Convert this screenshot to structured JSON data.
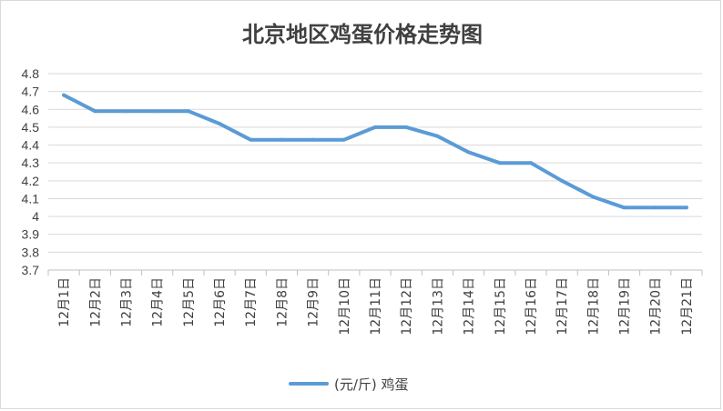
{
  "chart_data": {
    "type": "line",
    "title": "北京地区鸡蛋价格走势图",
    "categories": [
      "12月1日",
      "12月2日",
      "12月3日",
      "12月4日",
      "12月5日",
      "12月6日",
      "12月7日",
      "12月8日",
      "12月9日",
      "12月10日",
      "12月11日",
      "12月12日",
      "12月13日",
      "12月14日",
      "12月15日",
      "12月16日",
      "12月17日",
      "12月18日",
      "12月19日",
      "12月20日",
      "12月21日"
    ],
    "series": [
      {
        "name": "(元/斤) 鸡蛋",
        "values": [
          4.68,
          4.59,
          4.59,
          4.59,
          4.59,
          4.52,
          4.43,
          4.43,
          4.43,
          4.43,
          4.5,
          4.5,
          4.45,
          4.36,
          4.3,
          4.3,
          4.2,
          4.11,
          4.05,
          4.05,
          4.05
        ],
        "color": "#5b9bd5"
      }
    ],
    "ylim": [
      3.7,
      4.8
    ],
    "yticks": [
      "3.7",
      "3.8",
      "3.9",
      "4",
      "4.1",
      "4.2",
      "4.3",
      "4.4",
      "4.5",
      "4.6",
      "4.7",
      "4.8"
    ],
    "grid": true,
    "legend_position": "bottom"
  },
  "colors": {
    "gridline": "#d9d9d9",
    "axis": "#bfbfbf",
    "text": "#404040"
  }
}
